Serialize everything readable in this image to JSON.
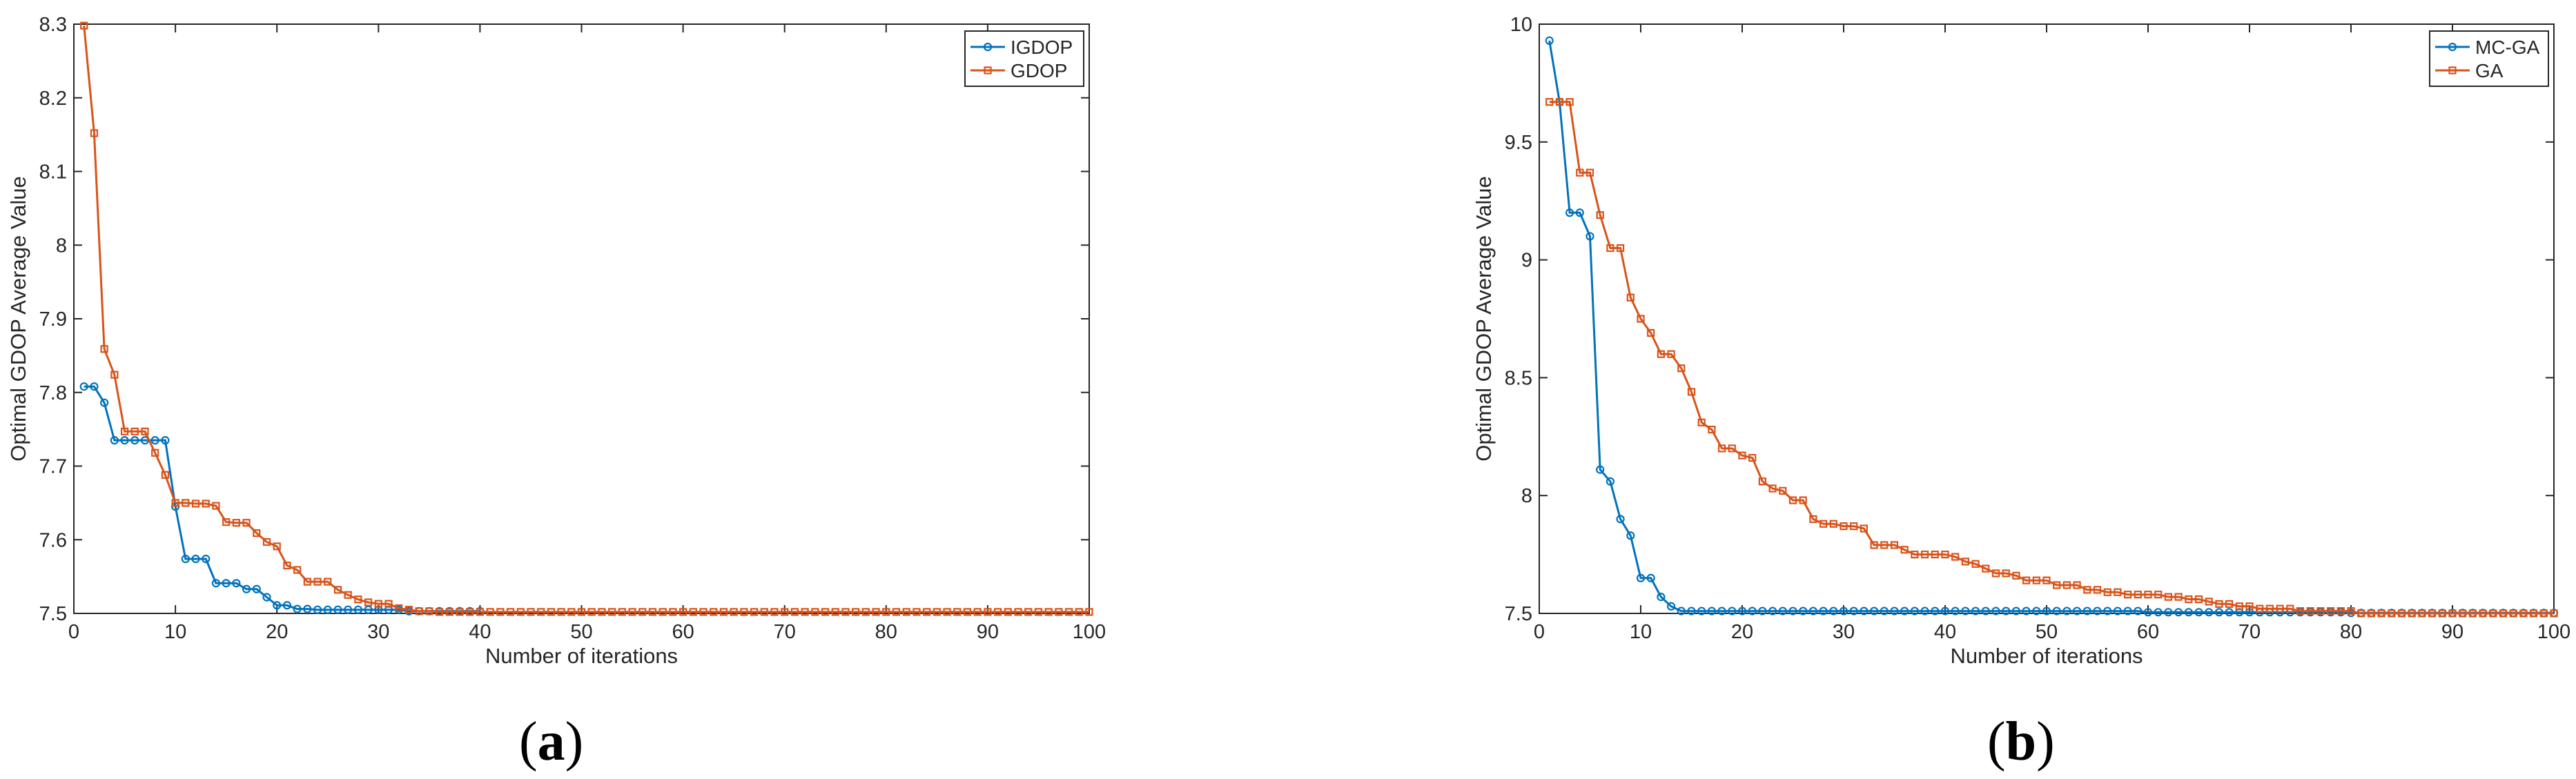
{
  "chart_data": [
    {
      "type": "line",
      "caption": "a",
      "xlabel": "Number of iterations",
      "ylabel": "Optimal GDOP Average Value",
      "xlim": [
        0,
        100
      ],
      "ylim": [
        7.5,
        8.3
      ],
      "xticks": [
        0,
        10,
        20,
        30,
        40,
        50,
        60,
        70,
        80,
        90,
        100
      ],
      "yticks": [
        7.5,
        7.6,
        7.7,
        7.8,
        7.9,
        8.0,
        8.1,
        8.2,
        8.3
      ],
      "ytick_labels": [
        "7.5",
        "7.6",
        "7.7",
        "7.8",
        "7.9",
        "8",
        "8.1",
        "8.2",
        "8.3"
      ],
      "grid": false,
      "legend_position": "top-right",
      "series": [
        {
          "name": "IGDOP",
          "color": "#0072BD",
          "marker": "circle",
          "x": [
            1,
            2,
            3,
            4,
            5,
            6,
            7,
            8,
            9,
            10,
            11,
            12,
            13,
            14,
            15,
            16,
            17,
            18,
            19,
            20,
            21,
            22,
            23,
            24,
            25,
            26,
            27,
            28,
            29,
            30,
            31,
            32,
            33,
            34,
            35,
            36,
            37,
            38,
            39,
            40
          ],
          "y": [
            7.808,
            7.808,
            7.786,
            7.735,
            7.735,
            7.735,
            7.735,
            7.735,
            7.735,
            7.645,
            7.574,
            7.574,
            7.574,
            7.541,
            7.541,
            7.541,
            7.533,
            7.533,
            7.522,
            7.511,
            7.511,
            7.506,
            7.506,
            7.505,
            7.505,
            7.505,
            7.505,
            7.505,
            7.505,
            7.505,
            7.505,
            7.505,
            7.503,
            7.503,
            7.503,
            7.503,
            7.503,
            7.503,
            7.503,
            7.503
          ]
        },
        {
          "name": "GDOP",
          "color": "#D95319",
          "marker": "square",
          "x": [
            1,
            2,
            3,
            4,
            5,
            6,
            7,
            8,
            9,
            10,
            11,
            12,
            13,
            14,
            15,
            16,
            17,
            18,
            19,
            20,
            21,
            22,
            23,
            24,
            25,
            26,
            27,
            28,
            29,
            30,
            31,
            32,
            33,
            34,
            35,
            36,
            37,
            38,
            39,
            40,
            41,
            42,
            43,
            44,
            45,
            46,
            47,
            48,
            49,
            50,
            51,
            52,
            53,
            54,
            55,
            56,
            57,
            58,
            59,
            60,
            61,
            62,
            63,
            64,
            65,
            66,
            67,
            68,
            69,
            70,
            71,
            72,
            73,
            74,
            75,
            76,
            77,
            78,
            79,
            80,
            81,
            82,
            83,
            84,
            85,
            86,
            87,
            88,
            89,
            90,
            91,
            92,
            93,
            94,
            95,
            96,
            97,
            98,
            99,
            100
          ],
          "y": [
            8.298,
            8.152,
            7.859,
            7.824,
            7.747,
            7.747,
            7.747,
            7.718,
            7.688,
            7.65,
            7.65,
            7.649,
            7.649,
            7.646,
            7.624,
            7.623,
            7.623,
            7.609,
            7.597,
            7.591,
            7.565,
            7.559,
            7.543,
            7.543,
            7.543,
            7.532,
            7.525,
            7.519,
            7.515,
            7.513,
            7.513,
            7.507,
            7.505,
            7.503,
            7.503,
            7.502,
            7.502,
            7.502,
            7.502,
            7.502,
            7.502,
            7.502,
            7.502,
            7.502,
            7.502,
            7.502,
            7.502,
            7.502,
            7.502,
            7.502,
            7.502,
            7.502,
            7.502,
            7.502,
            7.502,
            7.502,
            7.502,
            7.502,
            7.502,
            7.502,
            7.502,
            7.502,
            7.502,
            7.502,
            7.502,
            7.502,
            7.502,
            7.502,
            7.502,
            7.502,
            7.502,
            7.502,
            7.502,
            7.502,
            7.502,
            7.502,
            7.502,
            7.502,
            7.502,
            7.502,
            7.502,
            7.502,
            7.502,
            7.502,
            7.502,
            7.502,
            7.502,
            7.502,
            7.502,
            7.502,
            7.502,
            7.502,
            7.502,
            7.502,
            7.502,
            7.502,
            7.502,
            7.502,
            7.502,
            7.502
          ]
        }
      ]
    },
    {
      "type": "line",
      "caption": "b",
      "xlabel": "Number of iterations",
      "ylabel": "Optimal GDOP Average Value",
      "xlim": [
        0,
        100
      ],
      "ylim": [
        7.5,
        10
      ],
      "xticks": [
        0,
        10,
        20,
        30,
        40,
        50,
        60,
        70,
        80,
        90,
        100
      ],
      "yticks": [
        7.5,
        8,
        8.5,
        9,
        9.5,
        10
      ],
      "ytick_labels": [
        "7.5",
        "8",
        "8.5",
        "9",
        "9.5",
        "10"
      ],
      "grid": false,
      "legend_position": "top-right",
      "series": [
        {
          "name": "MC-GA",
          "color": "#0072BD",
          "marker": "circle",
          "x": [
            1,
            2,
            3,
            4,
            5,
            6,
            7,
            8,
            9,
            10,
            11,
            12,
            13,
            14,
            15,
            16,
            17,
            18,
            19,
            20,
            21,
            22,
            23,
            24,
            25,
            26,
            27,
            28,
            29,
            30,
            31,
            32,
            33,
            34,
            35,
            36,
            37,
            38,
            39,
            40,
            41,
            42,
            43,
            44,
            45,
            46,
            47,
            48,
            49,
            50,
            51,
            52,
            53,
            54,
            55,
            56,
            57,
            58,
            59,
            60,
            61,
            62,
            63,
            64,
            65,
            66,
            67,
            68,
            69,
            70,
            71,
            72,
            73,
            74,
            75,
            76,
            77,
            78,
            79,
            80,
            81,
            82,
            83,
            84,
            85,
            86,
            87,
            88,
            89,
            90,
            91,
            92,
            93,
            94,
            95,
            96,
            97,
            98,
            99,
            100
          ],
          "y": [
            9.93,
            9.67,
            9.2,
            9.2,
            9.1,
            8.11,
            8.06,
            7.9,
            7.83,
            7.65,
            7.65,
            7.57,
            7.53,
            7.51,
            7.51,
            7.51,
            7.51,
            7.51,
            7.51,
            7.51,
            7.51,
            7.51,
            7.51,
            7.51,
            7.51,
            7.51,
            7.51,
            7.51,
            7.51,
            7.51,
            7.51,
            7.51,
            7.51,
            7.51,
            7.51,
            7.51,
            7.51,
            7.51,
            7.51,
            7.51,
            7.51,
            7.51,
            7.51,
            7.51,
            7.51,
            7.51,
            7.51,
            7.51,
            7.51,
            7.51,
            7.51,
            7.51,
            7.51,
            7.51,
            7.51,
            7.51,
            7.51,
            7.51,
            7.51,
            7.505,
            7.505,
            7.505,
            7.505,
            7.505,
            7.505,
            7.505,
            7.505,
            7.505,
            7.505,
            7.505,
            7.505,
            7.505,
            7.505,
            7.505,
            7.505,
            7.505,
            7.505,
            7.505,
            7.505,
            7.502,
            7.502,
            7.502,
            7.502,
            7.502,
            7.502,
            7.502,
            7.502,
            7.502,
            7.502,
            7.502,
            7.502,
            7.502,
            7.502,
            7.502,
            7.502,
            7.502,
            7.502,
            7.502,
            7.502,
            7.502
          ]
        },
        {
          "name": "GA",
          "color": "#D95319",
          "marker": "square",
          "x": [
            1,
            2,
            3,
            4,
            5,
            6,
            7,
            8,
            9,
            10,
            11,
            12,
            13,
            14,
            15,
            16,
            17,
            18,
            19,
            20,
            21,
            22,
            23,
            24,
            25,
            26,
            27,
            28,
            29,
            30,
            31,
            32,
            33,
            34,
            35,
            36,
            37,
            38,
            39,
            40,
            41,
            42,
            43,
            44,
            45,
            46,
            47,
            48,
            49,
            50,
            51,
            52,
            53,
            54,
            55,
            56,
            57,
            58,
            59,
            60,
            61,
            62,
            63,
            64,
            65,
            66,
            67,
            68,
            69,
            70,
            71,
            72,
            73,
            74,
            75,
            76,
            77,
            78,
            79,
            80,
            81,
            82,
            83,
            84,
            85,
            86,
            87,
            88,
            89,
            90,
            91,
            92,
            93,
            94,
            95,
            96,
            97,
            98,
            99,
            100
          ],
          "y": [
            9.67,
            9.67,
            9.67,
            9.37,
            9.37,
            9.19,
            9.05,
            9.05,
            8.84,
            8.75,
            8.69,
            8.6,
            8.6,
            8.54,
            8.44,
            8.31,
            8.28,
            8.2,
            8.2,
            8.17,
            8.16,
            8.06,
            8.03,
            8.02,
            7.98,
            7.98,
            7.9,
            7.88,
            7.88,
            7.87,
            7.87,
            7.86,
            7.79,
            7.79,
            7.79,
            7.77,
            7.75,
            7.75,
            7.75,
            7.75,
            7.74,
            7.72,
            7.71,
            7.69,
            7.67,
            7.67,
            7.66,
            7.64,
            7.64,
            7.64,
            7.62,
            7.62,
            7.62,
            7.6,
            7.6,
            7.59,
            7.59,
            7.58,
            7.58,
            7.58,
            7.58,
            7.57,
            7.57,
            7.56,
            7.56,
            7.55,
            7.54,
            7.54,
            7.53,
            7.53,
            7.52,
            7.52,
            7.52,
            7.52,
            7.51,
            7.51,
            7.51,
            7.51,
            7.51,
            7.51,
            7.5,
            7.5,
            7.5,
            7.5,
            7.5,
            7.5,
            7.5,
            7.5,
            7.5,
            7.5,
            7.5,
            7.5,
            7.5,
            7.5,
            7.5,
            7.5,
            7.5,
            7.5,
            7.5,
            7.5
          ]
        }
      ]
    }
  ]
}
